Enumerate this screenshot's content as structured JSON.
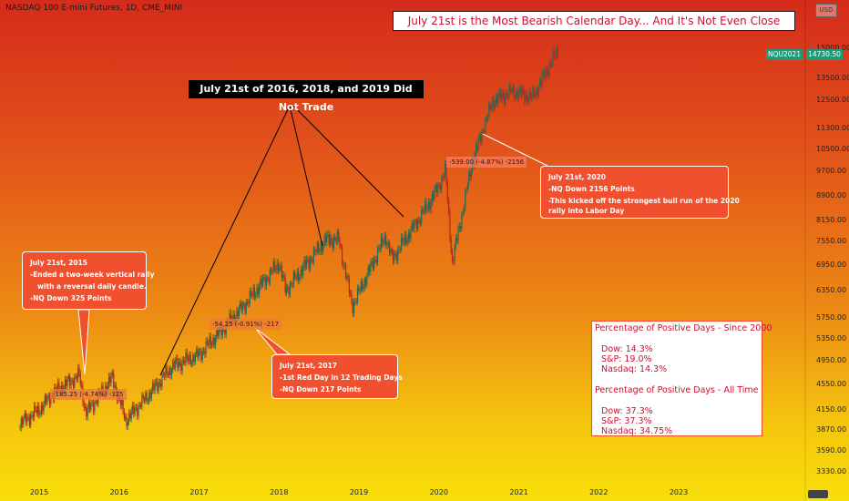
{
  "header": {
    "symbol_title": "NASDAQ 100 E-mini Futures, 1D, CME_MINI",
    "headline": "July 21st is the Most Bearish Calendar Day... And It's Not Even Close",
    "corner_button": "USD"
  },
  "label_not_traded": "July 21st of 2016, 2018, and 2019 Did Not Trade",
  "notes": {
    "n2015": {
      "line1": "July 21st, 2015",
      "line2": "-Ended a two-week vertical rally",
      "line3": "with a reversal daily candle.",
      "line4": "-NQ Down 325 Points"
    },
    "n2017": {
      "line1": "July 21st, 2017",
      "line2": "-1st Red Day in 12 Trading Days",
      "line3": "-NQ Down 217 Points"
    },
    "n2020": {
      "line1": "July 21st, 2020",
      "line2": "-NQ Down 2156 Points",
      "line3": "-This kicked off the strongest bull run of the 2020",
      "line4": "rally into Labor Day"
    }
  },
  "tags": {
    "t2015": "-185.25 (-4.74%) -325",
    "t2017": "-54.25 (-0.91%) -217",
    "t2020": "-539.00 (-4.87%) -2156"
  },
  "stats": {
    "title1": "Percentage of Positive Days - Since 2000",
    "dow1": "Dow: 14.3%",
    "sp1": "S&P: 19.0%",
    "nasdaq1": "Nasdaq: 14.3%",
    "title2": "Percentage of Positive Days - All Time",
    "dow2": "Dow: 37.3%",
    "sp2": "S&P: 37.3%",
    "nasdaq2": "Nasdaq: 34.75%"
  },
  "price_axis": {
    "symbol_tag": "NQU2021",
    "last_price": "14730.50",
    "tag_color": "#1f9a79"
  },
  "chart_data": {
    "type": "line",
    "title": "NASDAQ 100 E-mini Futures, 1D, CME_MINI",
    "xlabel": "",
    "ylabel": "",
    "x_ticks": [
      "2015",
      "2016",
      "2017",
      "2018",
      "2019",
      "2020",
      "2021",
      "2022",
      "2023"
    ],
    "y_ticks": [
      3330,
      3590,
      3870,
      4150,
      4550,
      4950,
      5350,
      5750,
      6350,
      6950,
      7550,
      8150,
      8900,
      9700,
      10500,
      11300,
      12500,
      13500,
      15000
    ],
    "log_scale": true,
    "grid": false,
    "series": [
      {
        "values": [
          {
            "x": "2014-10",
            "y": 3950
          },
          {
            "x": "2015-01",
            "y": 4150
          },
          {
            "x": "2015-03",
            "y": 4400
          },
          {
            "x": "2015-07",
            "y": 4700
          },
          {
            "x": "2015-08",
            "y": 4100
          },
          {
            "x": "2015-12",
            "y": 4650
          },
          {
            "x": "2016-02",
            "y": 4000
          },
          {
            "x": "2016-06",
            "y": 4450
          },
          {
            "x": "2016-09",
            "y": 4850
          },
          {
            "x": "2017-01",
            "y": 5050
          },
          {
            "x": "2017-07",
            "y": 5900
          },
          {
            "x": "2018-01",
            "y": 7000
          },
          {
            "x": "2018-02",
            "y": 6350
          },
          {
            "x": "2018-08",
            "y": 7600
          },
          {
            "x": "2018-10",
            "y": 7600
          },
          {
            "x": "2018-12",
            "y": 6000
          },
          {
            "x": "2019-05",
            "y": 7700
          },
          {
            "x": "2019-06",
            "y": 7100
          },
          {
            "x": "2019-12",
            "y": 8800
          },
          {
            "x": "2020-02",
            "y": 9700
          },
          {
            "x": "2020-03",
            "y": 7000
          },
          {
            "x": "2020-06",
            "y": 10000
          },
          {
            "x": "2020-09",
            "y": 12400
          },
          {
            "x": "2020-12",
            "y": 12900
          },
          {
            "x": "2021-03",
            "y": 12600
          },
          {
            "x": "2021-07",
            "y": 15000
          }
        ]
      }
    ]
  }
}
